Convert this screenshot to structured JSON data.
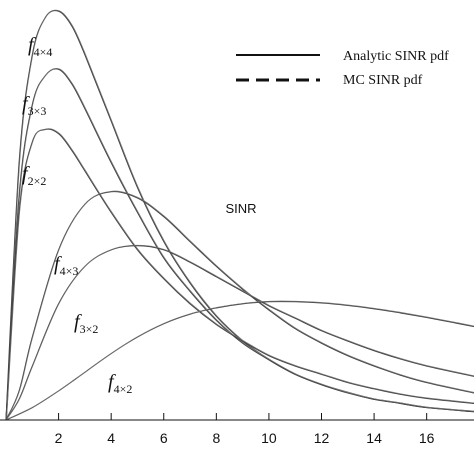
{
  "chart_data": {
    "type": "line",
    "title": "",
    "xlabel": "SINR",
    "ylabel": "",
    "xlim": [
      0,
      17.8
    ],
    "ylim": [
      0,
      1
    ],
    "x_ticks": [
      "2",
      "4",
      "6",
      "8",
      "10",
      "12",
      "14",
      "16"
    ],
    "grid": false,
    "legend_position": "top-right",
    "legend": [
      {
        "label": "Analytic SINR pdf",
        "style": "solid"
      },
      {
        "label": "MC SINR pdf",
        "style": "dashed"
      }
    ],
    "curve_labels": [
      {
        "series": "f4x4",
        "base": "f",
        "sub": "4×4"
      },
      {
        "series": "f3x3",
        "base": "f",
        "sub": "3×3"
      },
      {
        "series": "f2x2",
        "base": "f",
        "sub": "2×2"
      },
      {
        "series": "f4x3",
        "base": "f",
        "sub": "4×3"
      },
      {
        "series": "f3x2",
        "base": "f",
        "sub": "3×2"
      },
      {
        "series": "f4x2",
        "base": "f",
        "sub": "4×2"
      }
    ],
    "series": [
      {
        "name": "f4x4",
        "x": [
          0,
          0.5,
          1,
          1.5,
          2,
          2.5,
          3,
          4,
          5,
          6,
          7,
          8,
          9,
          10,
          11,
          12,
          13,
          14,
          15,
          16,
          17.8
        ],
        "y": [
          0,
          0.62,
          0.88,
          0.97,
          0.985,
          0.95,
          0.88,
          0.72,
          0.56,
          0.43,
          0.33,
          0.25,
          0.19,
          0.145,
          0.11,
          0.085,
          0.066,
          0.05,
          0.04,
          0.03,
          0.02
        ]
      },
      {
        "name": "f3x3",
        "x": [
          0,
          0.5,
          1,
          1.5,
          2,
          2.5,
          3,
          4,
          5,
          6,
          7,
          8,
          9,
          10,
          11,
          12,
          13,
          14,
          15,
          16,
          17.8
        ],
        "y": [
          0,
          0.54,
          0.76,
          0.83,
          0.845,
          0.81,
          0.75,
          0.62,
          0.5,
          0.39,
          0.31,
          0.24,
          0.185,
          0.145,
          0.11,
          0.085,
          0.065,
          0.05,
          0.04,
          0.03,
          0.02
        ]
      },
      {
        "name": "f2x2",
        "x": [
          0,
          0.5,
          1,
          1.5,
          2,
          2.5,
          3,
          4,
          5,
          6,
          7,
          8,
          9,
          10,
          11,
          12,
          13,
          14,
          15,
          16,
          17.8
        ],
        "y": [
          0,
          0.5,
          0.67,
          0.7,
          0.69,
          0.65,
          0.6,
          0.5,
          0.41,
          0.34,
          0.28,
          0.23,
          0.19,
          0.155,
          0.13,
          0.11,
          0.09,
          0.075,
          0.062,
          0.052,
          0.04
        ]
      },
      {
        "name": "f4x3",
        "x": [
          0,
          0.5,
          1,
          2,
          3,
          4,
          5,
          6,
          7,
          8,
          9,
          10,
          11,
          12,
          13,
          14,
          15,
          16,
          17.8
        ],
        "y": [
          0,
          0.07,
          0.2,
          0.41,
          0.52,
          0.55,
          0.535,
          0.49,
          0.43,
          0.37,
          0.315,
          0.265,
          0.22,
          0.185,
          0.155,
          0.13,
          0.108,
          0.09,
          0.065
        ]
      },
      {
        "name": "f3x2",
        "x": [
          0,
          0.5,
          1,
          2,
          3,
          4,
          5,
          6,
          7,
          8,
          9,
          10,
          11,
          12,
          13,
          14,
          15,
          16,
          17.8
        ],
        "y": [
          0,
          0.05,
          0.13,
          0.28,
          0.37,
          0.41,
          0.42,
          0.41,
          0.38,
          0.345,
          0.31,
          0.275,
          0.245,
          0.215,
          0.19,
          0.167,
          0.147,
          0.13,
          0.105
        ]
      },
      {
        "name": "f4x2",
        "x": [
          0,
          1,
          2,
          3,
          4,
          5,
          6,
          7,
          8,
          9,
          10,
          11,
          12,
          13,
          14,
          15,
          16,
          17,
          17.8
        ],
        "y": [
          0,
          0.03,
          0.07,
          0.115,
          0.16,
          0.2,
          0.232,
          0.255,
          0.27,
          0.28,
          0.285,
          0.285,
          0.282,
          0.276,
          0.268,
          0.258,
          0.247,
          0.235,
          0.225
        ]
      }
    ]
  }
}
